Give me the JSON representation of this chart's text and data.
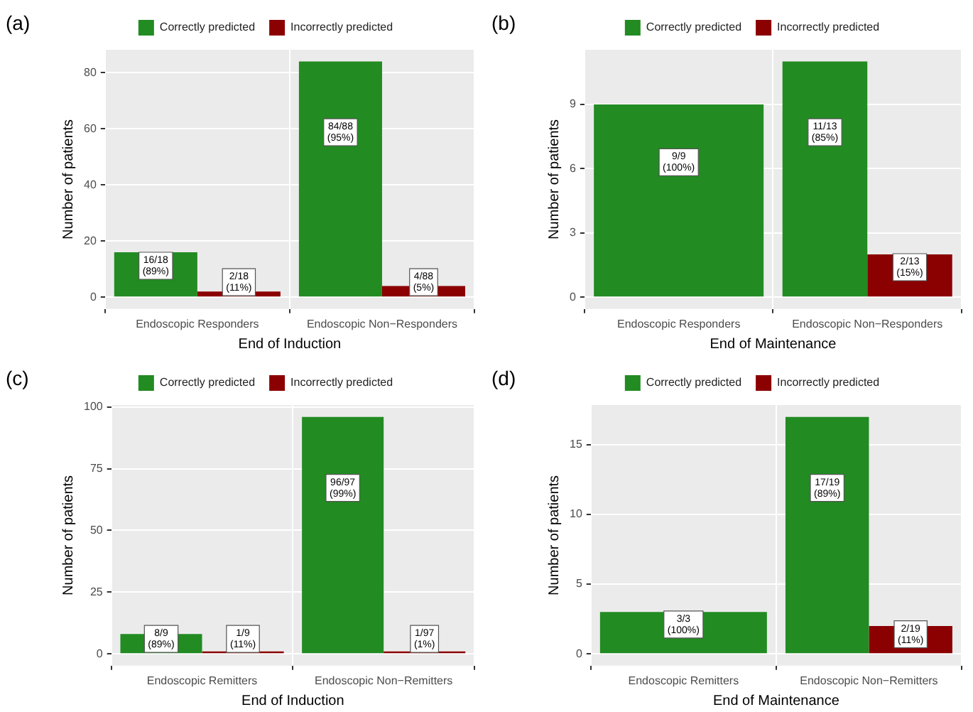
{
  "chart_data": [
    {
      "type": "bar",
      "title": "(a)",
      "xlabel": "End of Induction",
      "ylabel": "Number of patients",
      "categories": [
        "Endoscopic Responders",
        "Endoscopic Non−Responders"
      ],
      "series": [
        {
          "name": "Correctly predicted",
          "color": "#228b22",
          "values": [
            16,
            84
          ],
          "value_labels": [
            "16/18 (89%)",
            "84/88 (95%)"
          ]
        },
        {
          "name": "Incorrectly predicted",
          "color": "#8b0000",
          "values": [
            2,
            4
          ],
          "value_labels": [
            "2/18 (11%)",
            "4/88 (5%)"
          ]
        }
      ],
      "ylim": [
        -4.2,
        88.2
      ],
      "yticks": [
        0,
        20,
        40,
        60,
        80
      ],
      "grid": true,
      "legend": "top"
    },
    {
      "type": "bar",
      "title": "(b)",
      "xlabel": "End of Maintenance",
      "ylabel": "Number of patients",
      "categories": [
        "Endoscopic Responders",
        "Endoscopic Non−Responders"
      ],
      "series": [
        {
          "name": "Correctly predicted",
          "color": "#228b22",
          "values": [
            9,
            11
          ],
          "value_labels": [
            "9/9 (100%)",
            "11/13 (85%)"
          ]
        },
        {
          "name": "Incorrectly predicted",
          "color": "#8b0000",
          "values": [
            null,
            2
          ],
          "value_labels": [
            null,
            "2/13 (15%)"
          ]
        }
      ],
      "ylim": [
        -0.55,
        11.55
      ],
      "yticks": [
        0,
        3,
        6,
        9
      ],
      "grid": true,
      "legend": "top"
    },
    {
      "type": "bar",
      "title": "(c)",
      "xlabel": "End of Induction",
      "ylabel": "Number of patients",
      "categories": [
        "Endoscopic Remitters",
        "Endoscopic Non−Remitters"
      ],
      "series": [
        {
          "name": "Correctly predicted",
          "color": "#228b22",
          "values": [
            8,
            96
          ],
          "value_labels": [
            "8/9 (89%)",
            "96/97 (99%)"
          ]
        },
        {
          "name": "Incorrectly predicted",
          "color": "#8b0000",
          "values": [
            1,
            1
          ],
          "value_labels": [
            "1/9 (11%)",
            "1/97 (1%)"
          ]
        }
      ],
      "ylim": [
        -4.8,
        100.8
      ],
      "yticks": [
        0,
        25,
        50,
        75,
        100
      ],
      "grid": true,
      "legend": "top"
    },
    {
      "type": "bar",
      "title": "(d)",
      "xlabel": "End of Maintenance",
      "ylabel": "Number of patients",
      "categories": [
        "Endoscopic Remitters",
        "Endoscopic Non−Remitters"
      ],
      "series": [
        {
          "name": "Correctly predicted",
          "color": "#228b22",
          "values": [
            3,
            17
          ],
          "value_labels": [
            "3/3 (100%)",
            "17/19 (89%)"
          ]
        },
        {
          "name": "Incorrectly predicted",
          "color": "#8b0000",
          "values": [
            null,
            2
          ],
          "value_labels": [
            null,
            "2/19 (11%)"
          ]
        }
      ],
      "ylim": [
        -0.85,
        17.85
      ],
      "yticks": [
        0,
        5,
        10,
        15
      ],
      "grid": true,
      "legend": "top"
    }
  ]
}
